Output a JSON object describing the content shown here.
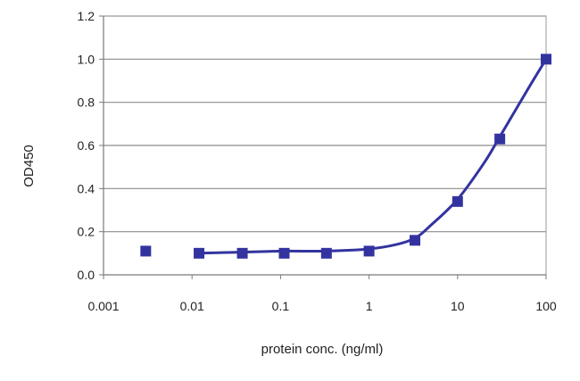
{
  "chart_data": {
    "type": "scatter",
    "title": "",
    "xlabel": "protein conc. (ng/ml)",
    "ylabel": "OD450",
    "x_scale": "log",
    "xlim": [
      0.001,
      100
    ],
    "ylim": [
      0,
      1.2
    ],
    "x_ticks": [
      0.001,
      0.01,
      0.1,
      1,
      10,
      100
    ],
    "x_tick_labels": [
      "0.001",
      "0.01",
      "0.1",
      "1",
      "10",
      "100"
    ],
    "y_ticks": [
      0,
      0.2,
      0.4,
      0.6,
      0.8,
      1.0,
      1.2
    ],
    "y_tick_labels": [
      "0.0",
      "0.2",
      "0.4",
      "0.6",
      "0.8",
      "1.0",
      "1.2"
    ],
    "grid": "horizontal",
    "legend": "none",
    "series": [
      {
        "color": "#3333a0",
        "marker": "square",
        "x": [
          0.003,
          0.012,
          0.037,
          0.11,
          0.33,
          1,
          3.3,
          10,
          30,
          100
        ],
        "y": [
          0.11,
          0.1,
          0.1,
          0.1,
          0.1,
          0.11,
          0.16,
          0.34,
          0.63,
          1.0
        ],
        "fit": {
          "x": [
            0.012,
            0.037,
            0.11,
            0.33,
            1,
            2,
            3.3,
            5,
            10,
            20,
            30,
            60,
            100
          ],
          "y": [
            0.1,
            0.105,
            0.11,
            0.11,
            0.12,
            0.14,
            0.17,
            0.23,
            0.35,
            0.52,
            0.64,
            0.85,
            1.0
          ]
        }
      }
    ]
  }
}
